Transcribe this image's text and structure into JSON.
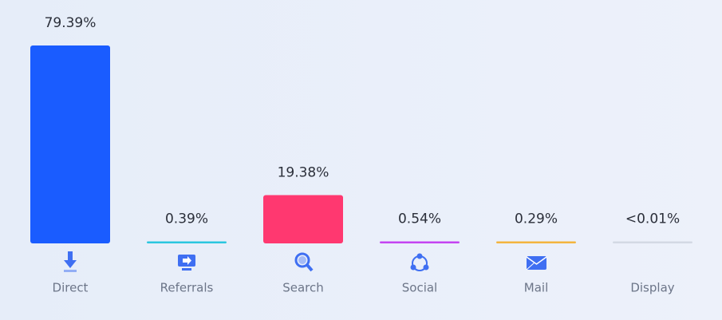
{
  "chart_data": {
    "type": "bar",
    "categories": [
      "Direct",
      "Referrals",
      "Search",
      "Social",
      "Mail",
      "Display"
    ],
    "values": [
      79.39,
      0.39,
      19.38,
      0.54,
      0.29,
      0.01
    ],
    "value_labels": [
      "79.39%",
      "0.39%",
      "19.38%",
      "0.54%",
      "0.29%",
      "<0.01%"
    ],
    "colors": [
      "#1a5cff",
      "#2bc6df",
      "#ff3870",
      "#c444f2",
      "#f3b53f",
      "#d3d9e4"
    ]
  }
}
